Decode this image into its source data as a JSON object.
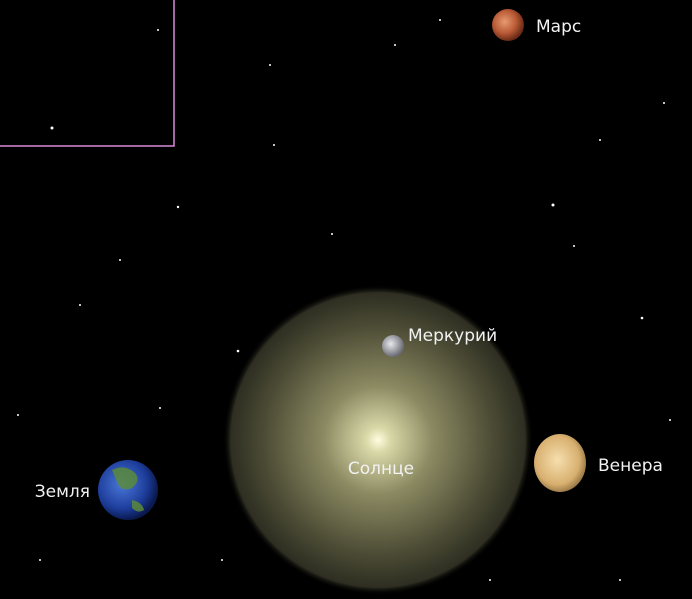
{
  "objects": [
    {
      "label": "Марс"
    },
    {
      "label": "Меркурий"
    },
    {
      "label": "Солнце"
    },
    {
      "label": "Венера"
    },
    {
      "label": "Земля"
    }
  ]
}
